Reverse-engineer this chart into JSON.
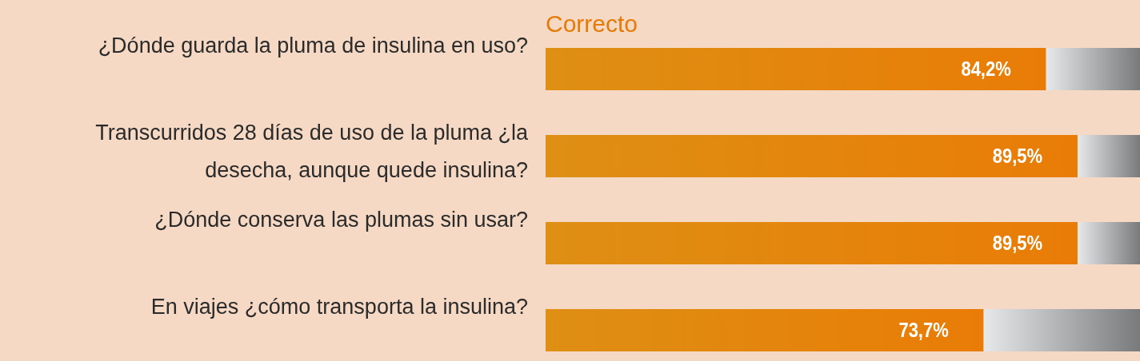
{
  "chart_data": {
    "type": "bar",
    "orientation": "horizontal",
    "stacked": true,
    "categories": [
      "¿Dónde guarda la pluma de insulina en uso?",
      "Transcurridos 28 días de uso de la pluma ¿la desecha, aunque quede insulina?",
      "¿Dónde conserva las plumas sin usar?",
      "En viajes ¿cómo transporta la insulina?"
    ],
    "series": [
      {
        "name": "Correcto",
        "color": "#e57a06",
        "values": [
          84.2,
          89.5,
          89.5,
          73.7
        ],
        "value_labels": [
          "84,2%",
          "89,5%",
          "89,5%",
          "73,7%"
        ]
      },
      {
        "color": "#a7a8aa",
        "values": [
          15.8,
          10.5,
          10.5,
          26.3
        ]
      }
    ],
    "xlim": [
      0,
      100
    ],
    "tick_labels": "y",
    "legend": "top left"
  }
}
